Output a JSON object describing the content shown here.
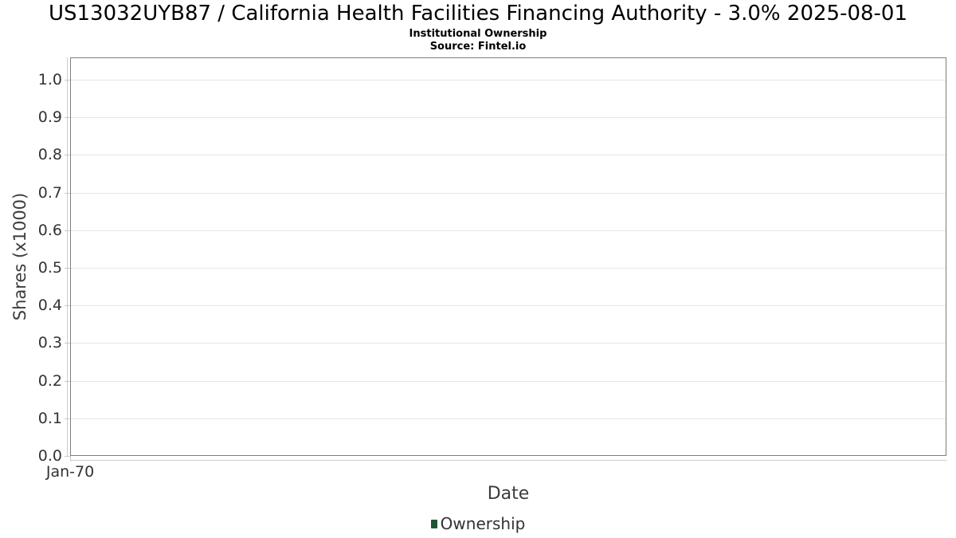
{
  "chart_data": {
    "type": "bar",
    "title": "US13032UYB87 / California Health Facilities Financing Authority - 3.0% 2025-08-01",
    "subtitle": "Institutional Ownership",
    "source": "Source: Fintel.io",
    "xlabel": "Date",
    "ylabel": "Shares (x1000)",
    "x_tick_labels": [
      "Jan-70"
    ],
    "y_tick_labels": [
      "0.0",
      "0.1",
      "0.2",
      "0.3",
      "0.4",
      "0.5",
      "0.6",
      "0.7",
      "0.8",
      "0.9",
      "1.0"
    ],
    "ylim": [
      0,
      1.06
    ],
    "grid": "horizontal",
    "legend": {
      "position": "bottom-center",
      "items": [
        {
          "label": "Ownership",
          "marker_color": "#1d5632"
        }
      ]
    },
    "series": [
      {
        "name": "Ownership",
        "type": "bar",
        "color": "#1d5632",
        "x": [],
        "values": []
      }
    ]
  },
  "colors": {
    "plot_border": "#7e7e7e",
    "gridline": "#e6e6e6",
    "axis_line": "#cccccc",
    "tick": "#c8c8c8",
    "title_text": "#000000",
    "axis_text": "#333333",
    "axis_title_text": "#3c3c3c",
    "legend_text": "#333333"
  }
}
